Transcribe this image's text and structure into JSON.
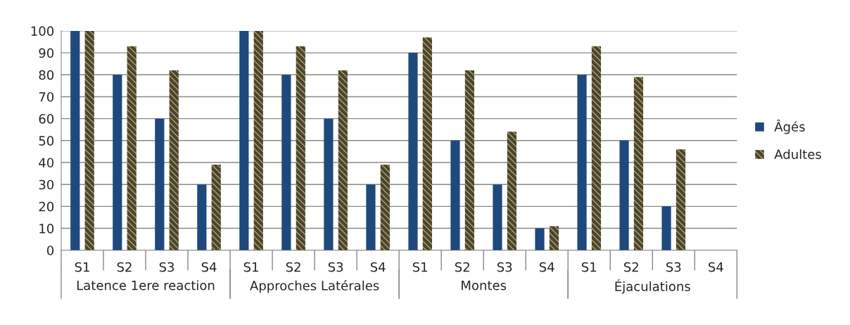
{
  "chart_data": {
    "type": "bar",
    "categories": [
      "S1",
      "S2",
      "S3",
      "S4",
      "S1",
      "S2",
      "S3",
      "S4",
      "S1",
      "S2",
      "S3",
      "S4",
      "S1",
      "S2",
      "S3",
      "S4"
    ],
    "series": [
      {
        "name": "Âgés",
        "color": "#1f497d",
        "values": [
          100,
          80,
          60,
          30,
          100,
          80,
          60,
          30,
          90,
          50,
          30,
          10,
          80,
          50,
          20,
          null
        ]
      },
      {
        "name": "Adultes",
        "color": "#4a4430",
        "values": [
          100,
          93,
          82,
          39,
          100,
          93,
          82,
          39,
          97,
          82,
          54,
          11,
          93,
          79,
          46,
          null
        ]
      }
    ],
    "annotations": [
      "Latence 1ere reaction",
      "Approches Latérales",
      "Montes",
      "Éjaculations"
    ],
    "ylim": [
      0,
      100
    ],
    "yticks": [
      0,
      10,
      20,
      30,
      40,
      50,
      60,
      70,
      80,
      90,
      100
    ],
    "grid": "y",
    "legend": "right"
  }
}
